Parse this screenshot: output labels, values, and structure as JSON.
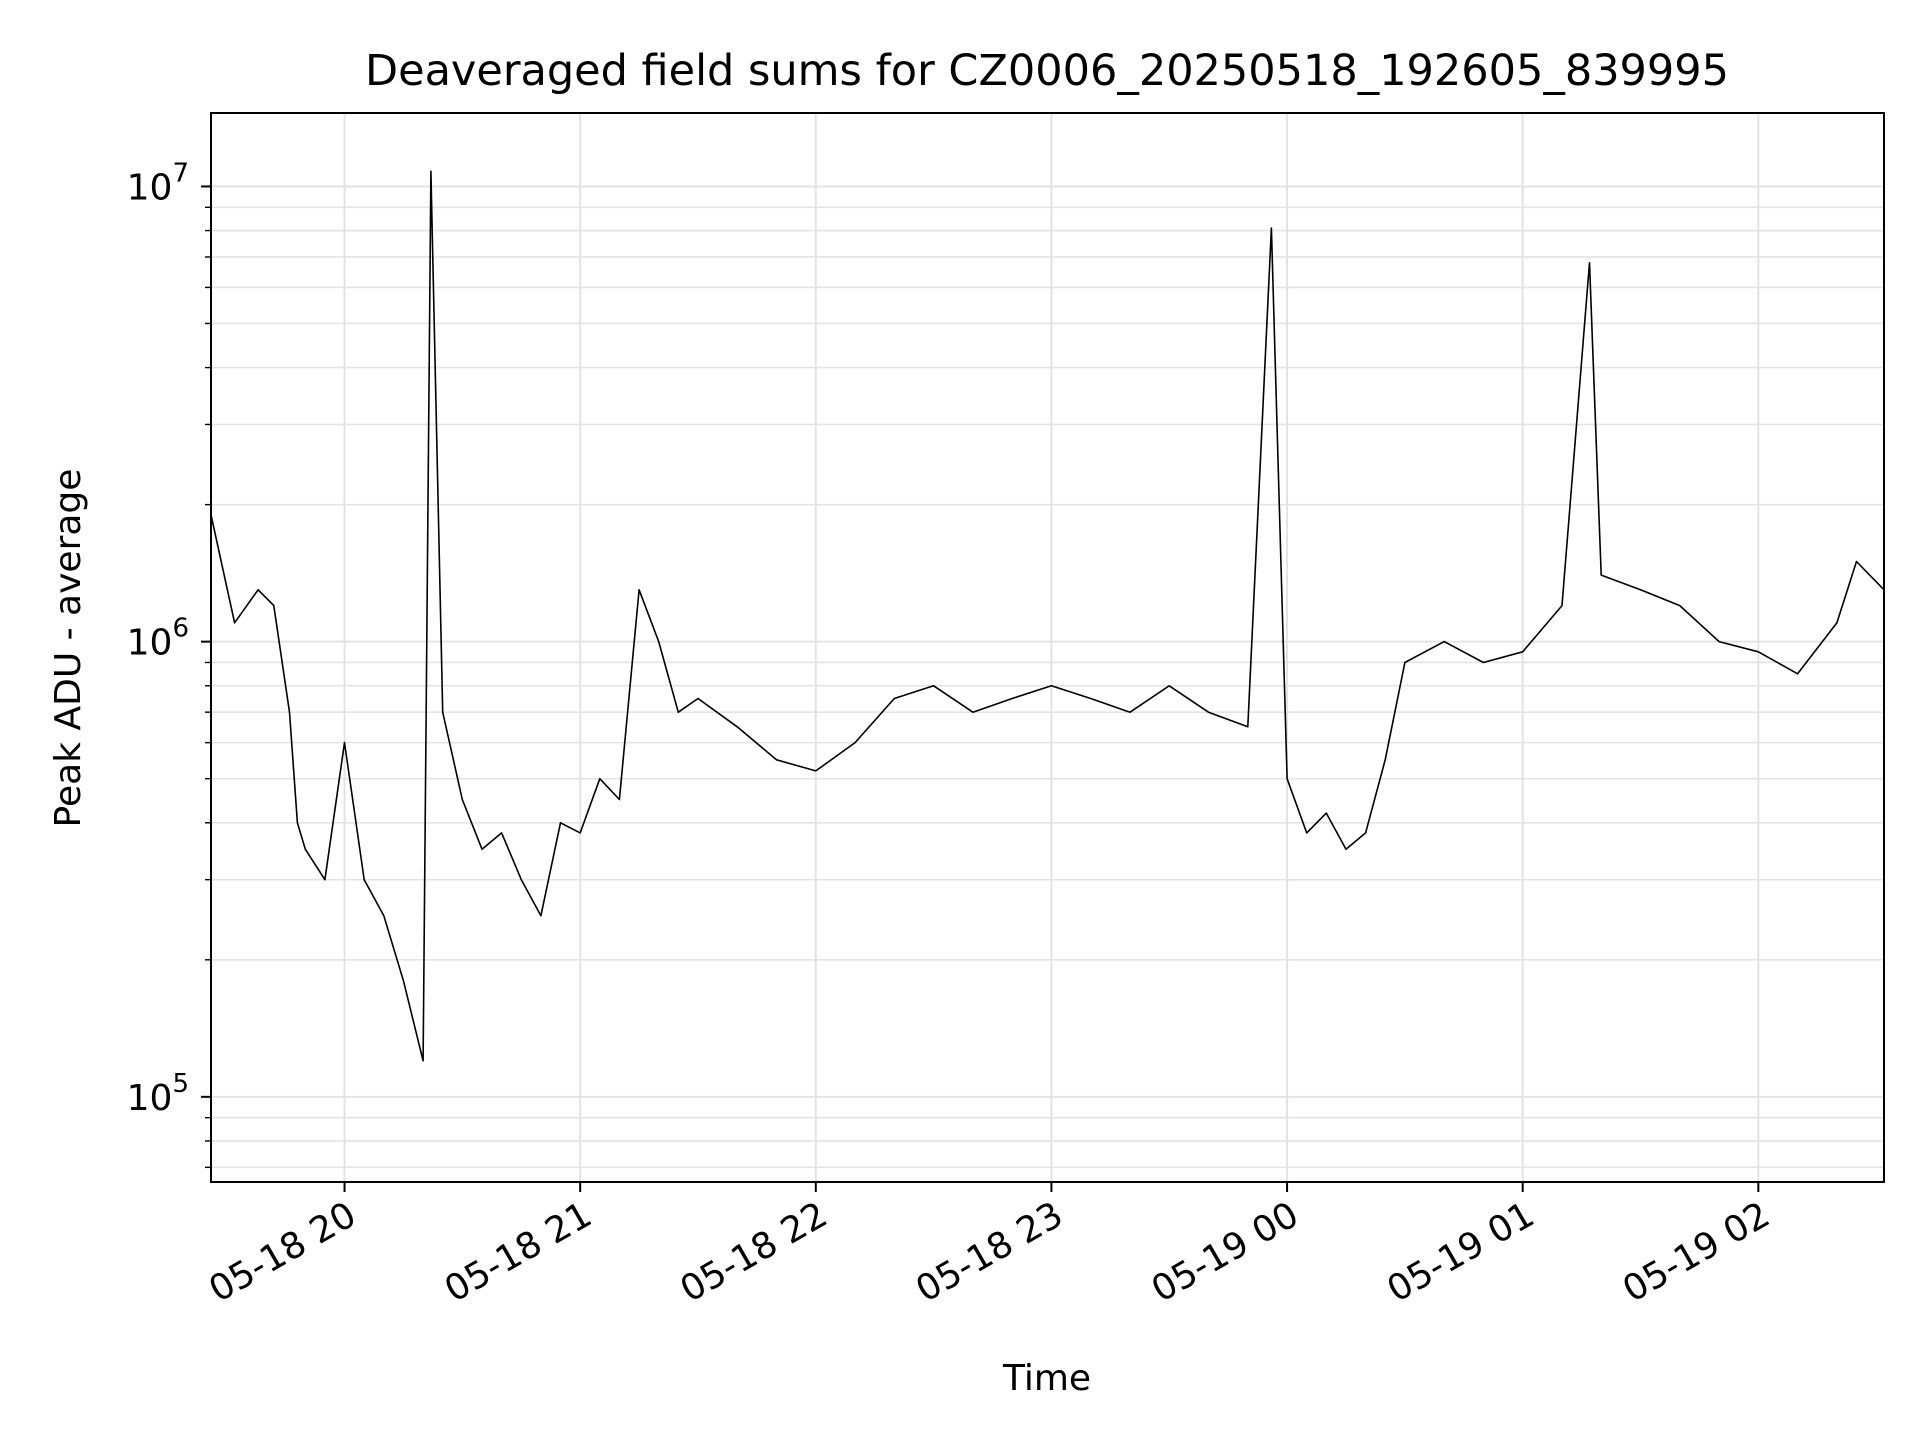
{
  "chart_data": {
    "type": "line",
    "title": "Deaveraged field sums for CZ0006_20250518_192605_839995",
    "xlabel": "Time",
    "ylabel": "Peak ADU - average",
    "y_scale": "log",
    "ylim": [
      65000,
      14500000
    ],
    "xlim": [
      "2025-05-18 19:26",
      "2025-05-19 02:32"
    ],
    "x_ticks": [
      {
        "value": "2025-05-18 20:00",
        "label": "05-18 20"
      },
      {
        "value": "2025-05-18 21:00",
        "label": "05-18 21"
      },
      {
        "value": "2025-05-18 22:00",
        "label": "05-18 22"
      },
      {
        "value": "2025-05-18 23:00",
        "label": "05-18 23"
      },
      {
        "value": "2025-05-19 00:00",
        "label": "05-19 00"
      },
      {
        "value": "2025-05-19 01:00",
        "label": "05-19 01"
      },
      {
        "value": "2025-05-19 02:00",
        "label": "05-19 02"
      }
    ],
    "y_ticks": [
      {
        "value": 100000,
        "base": "10",
        "exp": "5"
      },
      {
        "value": 1000000,
        "base": "10",
        "exp": "6"
      },
      {
        "value": 10000000,
        "base": "10",
        "exp": "7"
      }
    ],
    "grid": true,
    "line_color": "#000000",
    "series": [
      {
        "x": [
          "2025-05-18 19:26",
          "2025-05-18 19:32",
          "2025-05-18 19:38",
          "2025-05-18 19:42",
          "2025-05-18 19:46",
          "2025-05-18 19:48",
          "2025-05-18 19:50",
          "2025-05-18 19:55",
          "2025-05-18 20:00",
          "2025-05-18 20:05",
          "2025-05-18 20:10",
          "2025-05-18 20:15",
          "2025-05-18 20:20",
          "2025-05-18 20:22",
          "2025-05-18 20:25",
          "2025-05-18 20:30",
          "2025-05-18 20:35",
          "2025-05-18 20:40",
          "2025-05-18 20:45",
          "2025-05-18 20:50",
          "2025-05-18 20:55",
          "2025-05-18 21:00",
          "2025-05-18 21:05",
          "2025-05-18 21:10",
          "2025-05-18 21:15",
          "2025-05-18 21:20",
          "2025-05-18 21:25",
          "2025-05-18 21:30",
          "2025-05-18 21:40",
          "2025-05-18 21:50",
          "2025-05-18 22:00",
          "2025-05-18 22:10",
          "2025-05-18 22:20",
          "2025-05-18 22:30",
          "2025-05-18 22:40",
          "2025-05-18 22:50",
          "2025-05-18 23:00",
          "2025-05-18 23:10",
          "2025-05-18 23:20",
          "2025-05-18 23:30",
          "2025-05-18 23:40",
          "2025-05-18 23:50",
          "2025-05-18 23:56",
          "2025-05-19 00:00",
          "2025-05-19 00:05",
          "2025-05-19 00:10",
          "2025-05-19 00:15",
          "2025-05-19 00:20",
          "2025-05-19 00:25",
          "2025-05-19 00:30",
          "2025-05-19 00:40",
          "2025-05-19 00:50",
          "2025-05-19 01:00",
          "2025-05-19 01:10",
          "2025-05-19 01:17",
          "2025-05-19 01:20",
          "2025-05-19 01:30",
          "2025-05-19 01:40",
          "2025-05-19 01:50",
          "2025-05-19 02:00",
          "2025-05-19 02:10",
          "2025-05-19 02:20",
          "2025-05-19 02:25",
          "2025-05-19 02:32"
        ],
        "values": [
          1900000,
          1100000,
          1300000,
          1200000,
          700000,
          400000,
          350000,
          300000,
          600000,
          300000,
          250000,
          180000,
          120000,
          10800000,
          700000,
          450000,
          350000,
          380000,
          300000,
          250000,
          400000,
          380000,
          500000,
          450000,
          1300000,
          1000000,
          700000,
          750000,
          650000,
          550000,
          520000,
          600000,
          750000,
          800000,
          700000,
          750000,
          800000,
          750000,
          700000,
          800000,
          700000,
          650000,
          8100000,
          500000,
          380000,
          420000,
          350000,
          380000,
          550000,
          900000,
          1000000,
          900000,
          950000,
          1200000,
          6800000,
          1400000,
          1300000,
          1200000,
          1000000,
          950000,
          850000,
          1100000,
          1500000,
          1300000
        ]
      }
    ]
  }
}
